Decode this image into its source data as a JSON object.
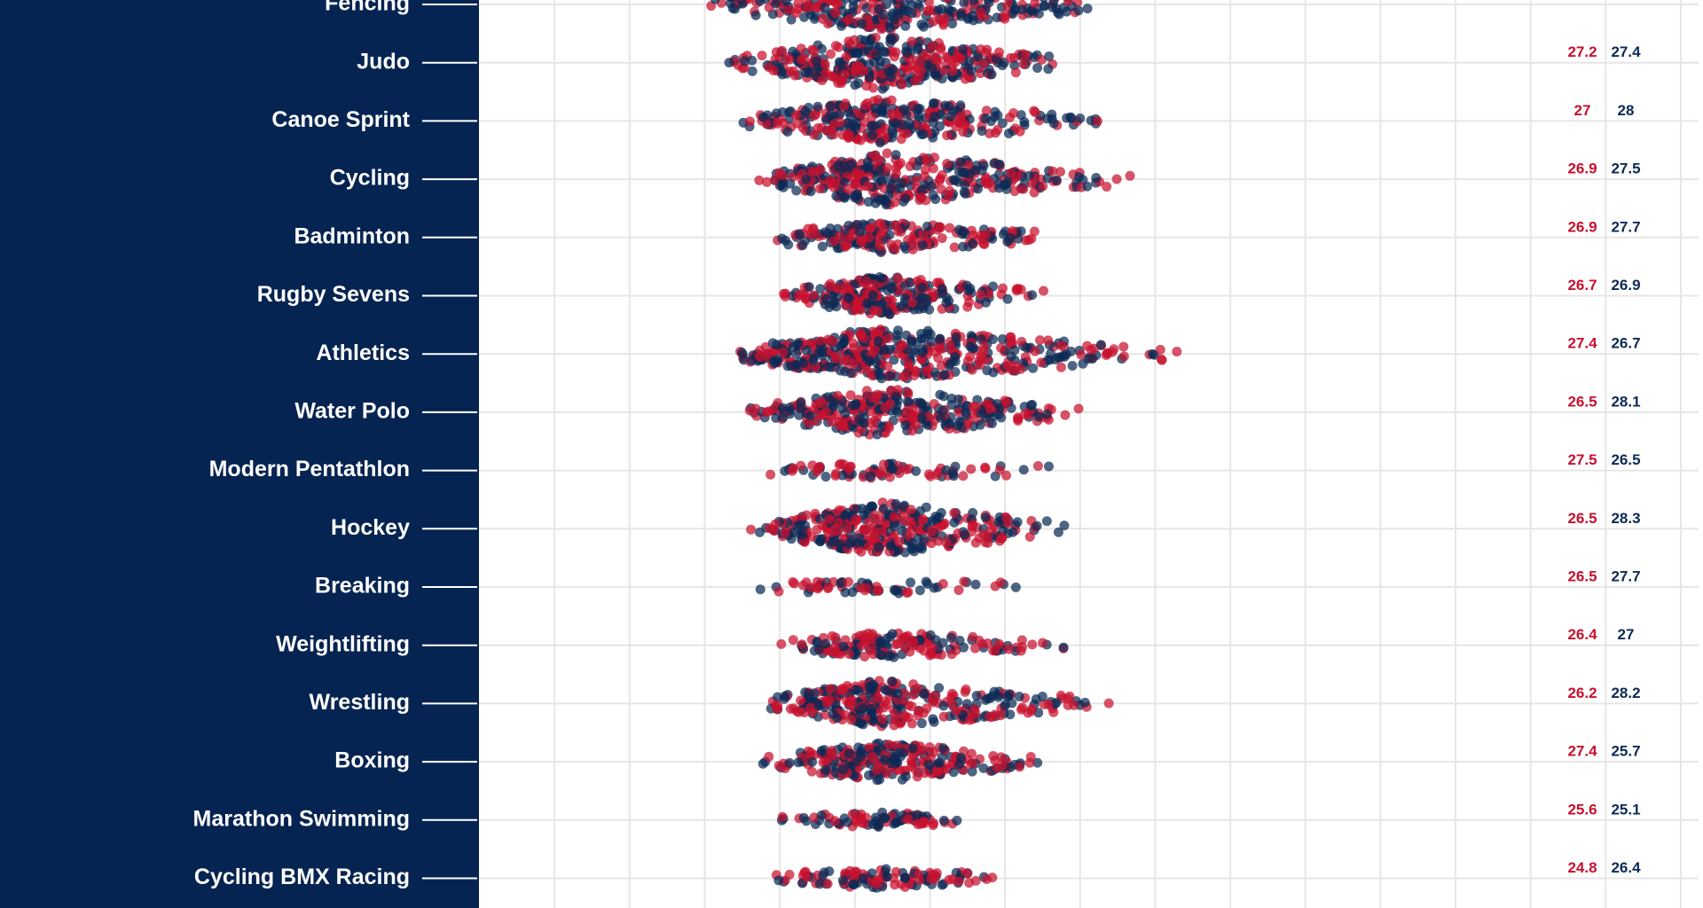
{
  "chart_data": {
    "type": "beeswarm",
    "categories": [
      "Fencing",
      "Judo",
      "Canoe Sprint",
      "Cycling",
      "Badminton",
      "Rugby Sevens",
      "Athletics",
      "Water Polo",
      "Modern Pentathlon",
      "Hockey",
      "Breaking",
      "Weightlifting",
      "Wrestling",
      "Boxing",
      "Marathon Swimming",
      "Cycling BMX Racing"
    ],
    "series": [
      {
        "color": "#c8102e",
        "values": [
          null,
          27.2,
          27,
          26.9,
          26.9,
          26.7,
          27.4,
          26.5,
          27.5,
          26.5,
          26.5,
          26.4,
          26.2,
          27.4,
          25.6,
          24.8
        ]
      },
      {
        "color": "#0b2a55",
        "values": [
          null,
          27.4,
          28,
          27.5,
          27.7,
          26.9,
          26.7,
          28.1,
          26.5,
          28.3,
          27.7,
          27,
          28.2,
          25.7,
          25.1,
          26.4
        ]
      }
    ]
  }
}
